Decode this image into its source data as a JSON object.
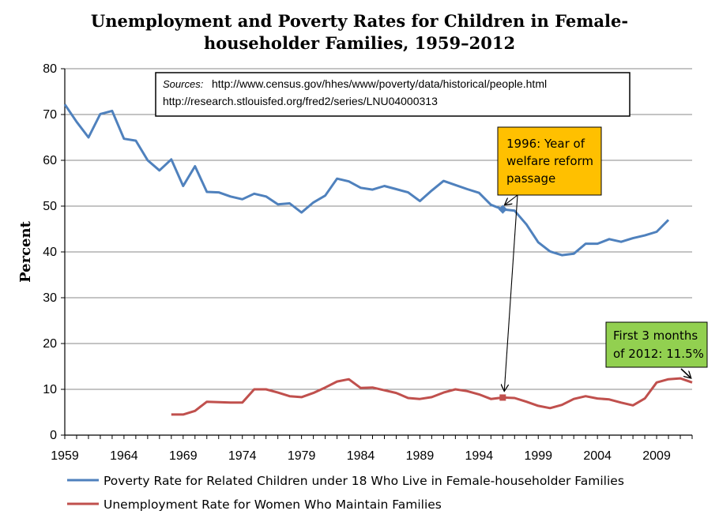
{
  "chart_data": {
    "type": "line",
    "title_lines": [
      "Unemployment and Poverty Rates for Children in Female-",
      "householder Families, 1959–2012"
    ],
    "ylabel": "Percent",
    "xlabel": "",
    "xlim": [
      1959,
      2012
    ],
    "ylim": [
      0,
      80
    ],
    "x_ticks": [
      "1959",
      "1964",
      "1969",
      "1974",
      "1979",
      "1984",
      "1989",
      "1994",
      "1999",
      "2004",
      "2009"
    ],
    "y_ticks": [
      "0",
      "10",
      "20",
      "30",
      "40",
      "50",
      "60",
      "70",
      "80"
    ],
    "grid": "horizontal",
    "legend_position": "bottom",
    "colors": {
      "poverty": "#4f81bd",
      "unemployment": "#c0504d",
      "axis": "#000000",
      "grid": "#888888"
    },
    "series": [
      {
        "name": "Poverty Rate for Related Children under 18 Who Live in Female-householder Families",
        "color": "#4f81bd",
        "x": [
          1959,
          1960,
          1961,
          1962,
          1963,
          1964,
          1965,
          1966,
          1967,
          1968,
          1969,
          1970,
          1971,
          1972,
          1973,
          1974,
          1975,
          1976,
          1977,
          1978,
          1979,
          1980,
          1981,
          1982,
          1983,
          1984,
          1985,
          1986,
          1987,
          1988,
          1989,
          1990,
          1991,
          1992,
          1993,
          1994,
          1995,
          1996,
          1997,
          1998,
          1999,
          2000,
          2001,
          2002,
          2003,
          2004,
          2005,
          2006,
          2007,
          2008,
          2009,
          2010
        ],
        "y": [
          72.2,
          68.4,
          65.0,
          70.1,
          70.8,
          64.7,
          64.3,
          60.0,
          57.8,
          60.2,
          54.4,
          58.7,
          53.1,
          53.0,
          52.1,
          51.5,
          52.7,
          52.1,
          50.4,
          50.6,
          48.6,
          50.8,
          52.3,
          56.0,
          55.4,
          54.0,
          53.6,
          54.4,
          53.7,
          53.0,
          51.1,
          53.4,
          55.5,
          54.6,
          53.7,
          52.9,
          50.3,
          49.3,
          49.0,
          46.0,
          42.1,
          40.1,
          39.3,
          39.6,
          41.8,
          41.8,
          42.8,
          42.2,
          43.0,
          43.6,
          44.4,
          47.0
        ]
      },
      {
        "name": "Unemployment Rate for Women Who Maintain Families",
        "color": "#c0504d",
        "x": [
          1968,
          1969,
          1970,
          1971,
          1972,
          1973,
          1974,
          1975,
          1976,
          1977,
          1978,
          1979,
          1980,
          1981,
          1982,
          1983,
          1984,
          1985,
          1986,
          1987,
          1988,
          1989,
          1990,
          1991,
          1992,
          1993,
          1994,
          1995,
          1996,
          1997,
          1998,
          1999,
          2000,
          2001,
          2002,
          2003,
          2004,
          2005,
          2006,
          2007,
          2008,
          2009,
          2010,
          2011,
          2012
        ],
        "y": [
          4.5,
          4.5,
          5.3,
          7.3,
          7.2,
          7.1,
          7.1,
          10.0,
          10.0,
          9.3,
          8.5,
          8.3,
          9.2,
          10.4,
          11.7,
          12.2,
          10.3,
          10.4,
          9.8,
          9.2,
          8.1,
          7.9,
          8.3,
          9.3,
          10.0,
          9.6,
          8.9,
          7.9,
          8.2,
          8.1,
          7.3,
          6.4,
          5.9,
          6.6,
          7.9,
          8.5,
          8.0,
          7.8,
          7.1,
          6.5,
          8.0,
          11.5,
          12.2,
          12.4,
          11.5
        ]
      }
    ],
    "highlight_points": [
      {
        "series": 0,
        "x": 1996,
        "y": 49.3
      },
      {
        "series": 1,
        "x": 1996,
        "y": 8.2
      }
    ],
    "sources": {
      "label": "Sources:",
      "line1": "http://www.census.gov/hhes/www/poverty/data/historical/people.html",
      "line2": "http://research.stlouisfed.org/fred2/series/LNU04000313"
    },
    "annotations": {
      "welfare": {
        "lines": [
          "1996: Year of",
          "welfare reform",
          "passage"
        ],
        "fill": "#ffc000"
      },
      "first3": {
        "lines": [
          "First 3 months",
          "of 2012: 11.5%"
        ],
        "fill": "#92d050"
      }
    }
  }
}
